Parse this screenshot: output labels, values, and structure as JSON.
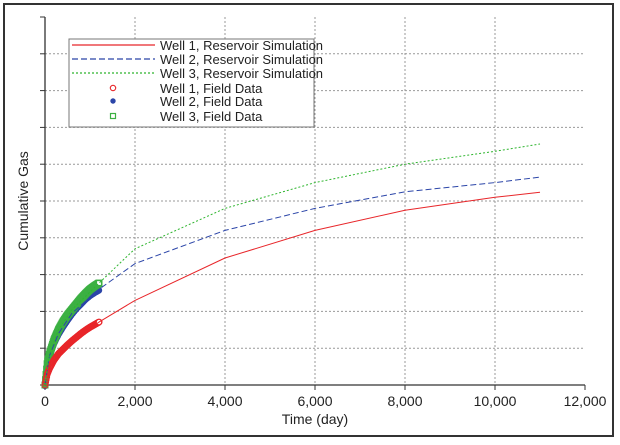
{
  "chart_data": {
    "type": "line",
    "title": "",
    "xlabel": "Time (day)",
    "ylabel": "Cumulative Gas",
    "xlim": [
      0,
      12000
    ],
    "ylim": [
      0,
      10
    ],
    "xticks": [
      0,
      2000,
      4000,
      6000,
      8000,
      10000,
      12000
    ],
    "xtick_labels": [
      "0",
      "2,000",
      "4,000",
      "6,000",
      "8,000",
      "10,000",
      "12,000"
    ],
    "yticks": [
      0,
      1,
      2,
      3,
      4,
      5,
      6,
      7,
      8,
      9,
      10
    ],
    "ytick_labels_shown": false,
    "grid": true,
    "legend_position": "top-left",
    "series": [
      {
        "name": "Well 1, Reservoir Simulation",
        "kind": "line",
        "style": "solid",
        "color": "#e8262a",
        "x": [
          0,
          100,
          300,
          600,
          1200,
          2000,
          4000,
          6000,
          8000,
          10000,
          11000
        ],
        "y": [
          0,
          0.45,
          0.85,
          1.2,
          1.71,
          2.3,
          3.45,
          4.2,
          4.75,
          5.1,
          5.24
        ]
      },
      {
        "name": "Well 2, Reservoir Simulation",
        "kind": "line",
        "style": "dashed",
        "color": "#2b45a8",
        "x": [
          0,
          100,
          300,
          600,
          1200,
          2000,
          4000,
          6000,
          8000,
          10000,
          11000
        ],
        "y": [
          0,
          0.8,
          1.4,
          1.95,
          2.6,
          3.3,
          4.2,
          4.8,
          5.25,
          5.5,
          5.65
        ]
      },
      {
        "name": "Well 3, Reservoir Simulation",
        "kind": "line",
        "style": "dotted",
        "color": "#2fb52f",
        "x": [
          0,
          100,
          300,
          600,
          1200,
          2000,
          4000,
          6000,
          8000,
          10000,
          11000
        ],
        "y": [
          0,
          0.85,
          1.5,
          2.05,
          2.77,
          3.7,
          4.8,
          5.5,
          6.0,
          6.35,
          6.55
        ]
      },
      {
        "name": "Well 1, Field Data",
        "kind": "marker",
        "marker": "open-circle",
        "color": "#e8262a",
        "x": [
          0,
          50,
          100,
          200,
          300,
          400,
          500,
          600,
          700,
          800,
          900,
          1000,
          1100,
          1200
        ],
        "y": [
          0,
          0.3,
          0.45,
          0.68,
          0.85,
          0.97,
          1.09,
          1.2,
          1.3,
          1.4,
          1.49,
          1.57,
          1.64,
          1.71
        ]
      },
      {
        "name": "Well 2, Field Data",
        "kind": "marker",
        "marker": "filled-circle",
        "color": "#2b45a8",
        "x": [
          0,
          50,
          100,
          200,
          300,
          400,
          500,
          600,
          700,
          800,
          900,
          1000,
          1100,
          1200
        ],
        "y": [
          0,
          0.55,
          0.8,
          1.15,
          1.4,
          1.6,
          1.78,
          1.95,
          2.1,
          2.22,
          2.35,
          2.45,
          2.53,
          2.6
        ]
      },
      {
        "name": "Well 3, Field Data",
        "kind": "marker",
        "marker": "open-square",
        "color": "#3cb043",
        "x": [
          0,
          50,
          100,
          200,
          300,
          400,
          500,
          600,
          700,
          800,
          900,
          1000,
          1100,
          1200
        ],
        "y": [
          0,
          0.6,
          0.85,
          1.22,
          1.5,
          1.72,
          1.9,
          2.05,
          2.2,
          2.35,
          2.48,
          2.6,
          2.69,
          2.77
        ]
      }
    ]
  }
}
